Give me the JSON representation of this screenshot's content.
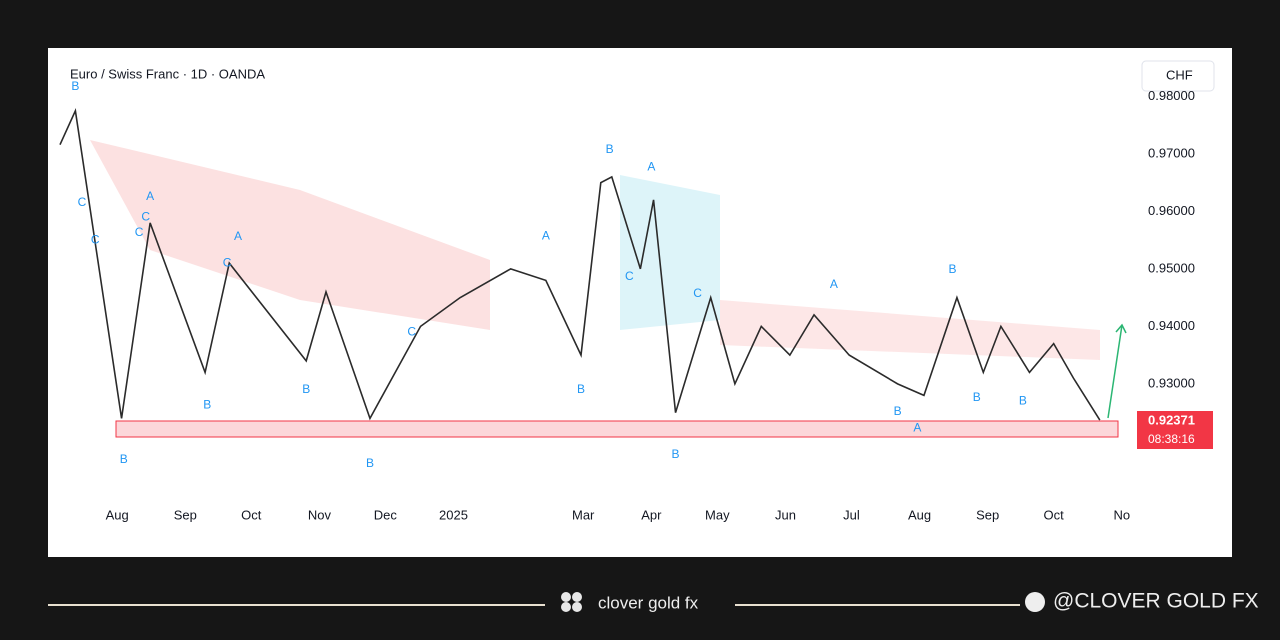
{
  "chart_data": {
    "type": "line",
    "title": "Euro / Swiss Franc · 1D · OANDA",
    "currency_label": "CHF",
    "countdown": "08:38:16",
    "color": "#2b2b2b",
    "grid": false,
    "xlim": [
      5,
      494
    ],
    "xticks": [
      {
        "value": 31,
        "label": "Aug"
      },
      {
        "value": 62,
        "label": "Sep"
      },
      {
        "value": 92,
        "label": "Oct"
      },
      {
        "value": 123,
        "label": "Nov"
      },
      {
        "value": 153,
        "label": "Dec"
      },
      {
        "value": 184,
        "label": "2025"
      },
      {
        "value": 243,
        "label": "Mar"
      },
      {
        "value": 274,
        "label": "Apr"
      },
      {
        "value": 304,
        "label": "May"
      },
      {
        "value": 335,
        "label": "Jun"
      },
      {
        "value": 365,
        "label": "Jul"
      },
      {
        "value": 396,
        "label": "Aug"
      },
      {
        "value": 427,
        "label": "Sep"
      },
      {
        "value": 457,
        "label": "Oct"
      },
      {
        "value": 488,
        "label": "No"
      }
    ],
    "ylim": [
      0.9098,
      0.9872
    ],
    "yticks": [
      {
        "value": 0.93,
        "label": "0.93000"
      },
      {
        "value": 0.94,
        "label": "0.94000"
      },
      {
        "value": 0.95,
        "label": "0.95000"
      },
      {
        "value": 0.96,
        "label": "0.96000"
      },
      {
        "value": 0.97,
        "label": "0.97000"
      },
      {
        "value": 0.98,
        "label": "0.98000"
      }
    ],
    "x": [
      5,
      12,
      33,
      46,
      71,
      82,
      117,
      126,
      146,
      169,
      187,
      210,
      226,
      242,
      251,
      256,
      269,
      275,
      285,
      301,
      312,
      324,
      337,
      348,
      364,
      386,
      398,
      413,
      425,
      433,
      446,
      457,
      466,
      478
    ],
    "values": [
      0.9716,
      0.9775,
      0.924,
      0.958,
      0.932,
      0.951,
      0.934,
      0.946,
      0.924,
      0.94,
      0.945,
      0.95,
      0.948,
      0.935,
      0.965,
      0.966,
      0.95,
      0.962,
      0.925,
      0.945,
      0.93,
      0.94,
      0.935,
      0.942,
      0.935,
      0.93,
      0.928,
      0.945,
      0.932,
      0.94,
      0.932,
      0.937,
      0.931,
      0.92371
    ],
    "annotations": [
      {
        "text": "B",
        "x": 34,
        "y": 0.9168
      },
      {
        "text": "A",
        "x": 46,
        "y": 0.9625
      },
      {
        "text": "C",
        "x": 44,
        "y": 0.959
      },
      {
        "text": "C",
        "x": 41,
        "y": 0.9563
      },
      {
        "text": "C",
        "x": 21,
        "y": 0.955
      },
      {
        "text": "C",
        "x": 15,
        "y": 0.9615
      },
      {
        "text": "B",
        "x": 72,
        "y": 0.9263
      },
      {
        "text": "A",
        "x": 86,
        "y": 0.9556
      },
      {
        "text": "C",
        "x": 81,
        "y": 0.951
      },
      {
        "text": "B",
        "x": 117,
        "y": 0.929
      },
      {
        "text": "B",
        "x": 146,
        "y": 0.9161
      },
      {
        "text": "C",
        "x": 165,
        "y": 0.939
      },
      {
        "text": "A",
        "x": 226,
        "y": 0.9557
      },
      {
        "text": "B",
        "x": 242,
        "y": 0.929
      },
      {
        "text": "B",
        "x": 255,
        "y": 0.9707
      },
      {
        "text": "A",
        "x": 274,
        "y": 0.9677
      },
      {
        "text": "C",
        "x": 264,
        "y": 0.9486
      },
      {
        "text": "C",
        "x": 295,
        "y": 0.9457
      },
      {
        "text": "B",
        "x": 285,
        "y": 0.9177
      },
      {
        "text": "A",
        "x": 357,
        "y": 0.9472
      },
      {
        "text": "B",
        "x": 386,
        "y": 0.9251
      },
      {
        "text": "A",
        "x": 395,
        "y": 0.9223
      },
      {
        "text": "B",
        "x": 411,
        "y": 0.9498
      },
      {
        "text": "B",
        "x": 422,
        "y": 0.9276
      },
      {
        "text": "B",
        "x": 443,
        "y": 0.927
      },
      {
        "text": "B",
        "x": 12,
        "y": 0.9817
      }
    ]
  },
  "branding": {
    "name": "clover gold fx",
    "handle": "@CLOVER GOLD FX"
  }
}
